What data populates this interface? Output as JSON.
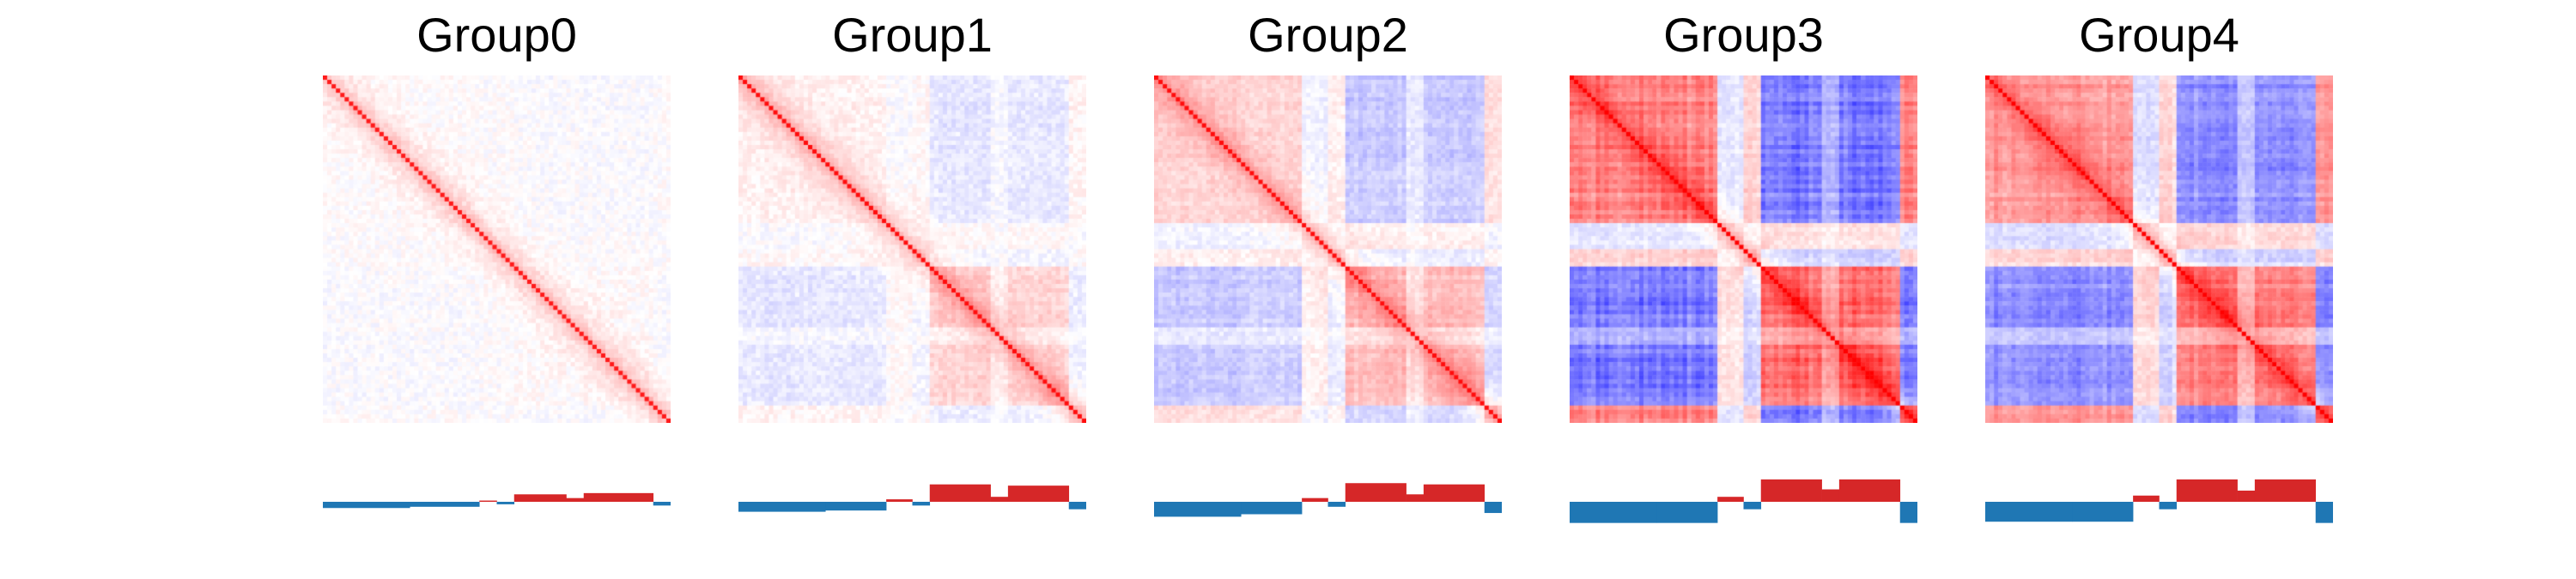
{
  "colors": {
    "positive": "#d62728",
    "negative": "#1f77b4",
    "heat_high": "#ff0000",
    "heat_low": "#0000ff",
    "background": "#ffffff"
  },
  "chart_data": [
    {
      "type": "heatmap",
      "title": "Group0",
      "description": "contact correlation matrix (red = positive, blue = negative) with compartment eigenvector track below",
      "matrix_bins": 80,
      "value_range": [
        -1,
        1
      ],
      "diagonal_value": 0.9,
      "mean_abs_offdiagonal": 0.1,
      "track": {
        "type": "area",
        "ylim": [
          -1,
          1
        ],
        "segments": [
          {
            "from": 0,
            "to": 20,
            "value": -0.25
          },
          {
            "from": 20,
            "to": 36,
            "value": -0.2
          },
          {
            "from": 36,
            "to": 40,
            "value": 0.05
          },
          {
            "from": 40,
            "to": 44,
            "value": -0.1
          },
          {
            "from": 44,
            "to": 56,
            "value": 0.3
          },
          {
            "from": 56,
            "to": 60,
            "value": 0.15
          },
          {
            "from": 60,
            "to": 76,
            "value": 0.35
          },
          {
            "from": 76,
            "to": 80,
            "value": -0.15
          }
        ]
      }
    },
    {
      "type": "heatmap",
      "title": "Group1",
      "description": "contact correlation matrix (red = positive, blue = negative) with compartment eigenvector track below",
      "matrix_bins": 80,
      "value_range": [
        -1,
        1
      ],
      "diagonal_value": 0.95,
      "mean_abs_offdiagonal": 0.22,
      "track": {
        "type": "area",
        "ylim": [
          -1,
          1
        ],
        "segments": [
          {
            "from": 0,
            "to": 20,
            "value": -0.4
          },
          {
            "from": 20,
            "to": 34,
            "value": -0.35
          },
          {
            "from": 34,
            "to": 40,
            "value": 0.1
          },
          {
            "from": 40,
            "to": 44,
            "value": -0.15
          },
          {
            "from": 44,
            "to": 58,
            "value": 0.7
          },
          {
            "from": 58,
            "to": 62,
            "value": 0.2
          },
          {
            "from": 62,
            "to": 76,
            "value": 0.65
          },
          {
            "from": 76,
            "to": 80,
            "value": -0.3
          }
        ]
      }
    },
    {
      "type": "heatmap",
      "title": "Group2",
      "description": "contact correlation matrix (red = positive, blue = negative) with compartment eigenvector track below",
      "matrix_bins": 80,
      "value_range": [
        -1,
        1
      ],
      "diagonal_value": 0.95,
      "mean_abs_offdiagonal": 0.3,
      "track": {
        "type": "area",
        "ylim": [
          -1,
          1
        ],
        "segments": [
          {
            "from": 0,
            "to": 20,
            "value": -0.6
          },
          {
            "from": 20,
            "to": 34,
            "value": -0.5
          },
          {
            "from": 34,
            "to": 40,
            "value": 0.15
          },
          {
            "from": 40,
            "to": 44,
            "value": -0.2
          },
          {
            "from": 44,
            "to": 58,
            "value": 0.75
          },
          {
            "from": 58,
            "to": 62,
            "value": 0.3
          },
          {
            "from": 62,
            "to": 76,
            "value": 0.7
          },
          {
            "from": 76,
            "to": 80,
            "value": -0.45
          }
        ]
      }
    },
    {
      "type": "heatmap",
      "title": "Group3",
      "description": "contact correlation matrix (red = positive, blue = negative) with compartment eigenvector track below",
      "matrix_bins": 80,
      "value_range": [
        -1,
        1
      ],
      "diagonal_value": 1.0,
      "mean_abs_offdiagonal": 0.42,
      "track": {
        "type": "area",
        "ylim": [
          -1,
          1
        ],
        "segments": [
          {
            "from": 0,
            "to": 20,
            "value": -0.85
          },
          {
            "from": 20,
            "to": 34,
            "value": -0.85
          },
          {
            "from": 34,
            "to": 40,
            "value": 0.2
          },
          {
            "from": 40,
            "to": 44,
            "value": -0.3
          },
          {
            "from": 44,
            "to": 58,
            "value": 0.9
          },
          {
            "from": 58,
            "to": 62,
            "value": 0.5
          },
          {
            "from": 62,
            "to": 76,
            "value": 0.9
          },
          {
            "from": 76,
            "to": 80,
            "value": -0.85
          }
        ]
      }
    },
    {
      "type": "heatmap",
      "title": "Group4",
      "description": "contact correlation matrix (red = positive, blue = negative) with compartment eigenvector track below",
      "matrix_bins": 80,
      "value_range": [
        -1,
        1
      ],
      "diagonal_value": 1.0,
      "mean_abs_offdiagonal": 0.38,
      "track": {
        "type": "area",
        "ylim": [
          -1,
          1
        ],
        "segments": [
          {
            "from": 0,
            "to": 20,
            "value": -0.8
          },
          {
            "from": 20,
            "to": 34,
            "value": -0.8
          },
          {
            "from": 34,
            "to": 40,
            "value": 0.25
          },
          {
            "from": 40,
            "to": 44,
            "value": -0.3
          },
          {
            "from": 44,
            "to": 58,
            "value": 0.9
          },
          {
            "from": 58,
            "to": 62,
            "value": 0.45
          },
          {
            "from": 62,
            "to": 76,
            "value": 0.9
          },
          {
            "from": 76,
            "to": 80,
            "value": -0.85
          }
        ]
      }
    }
  ]
}
